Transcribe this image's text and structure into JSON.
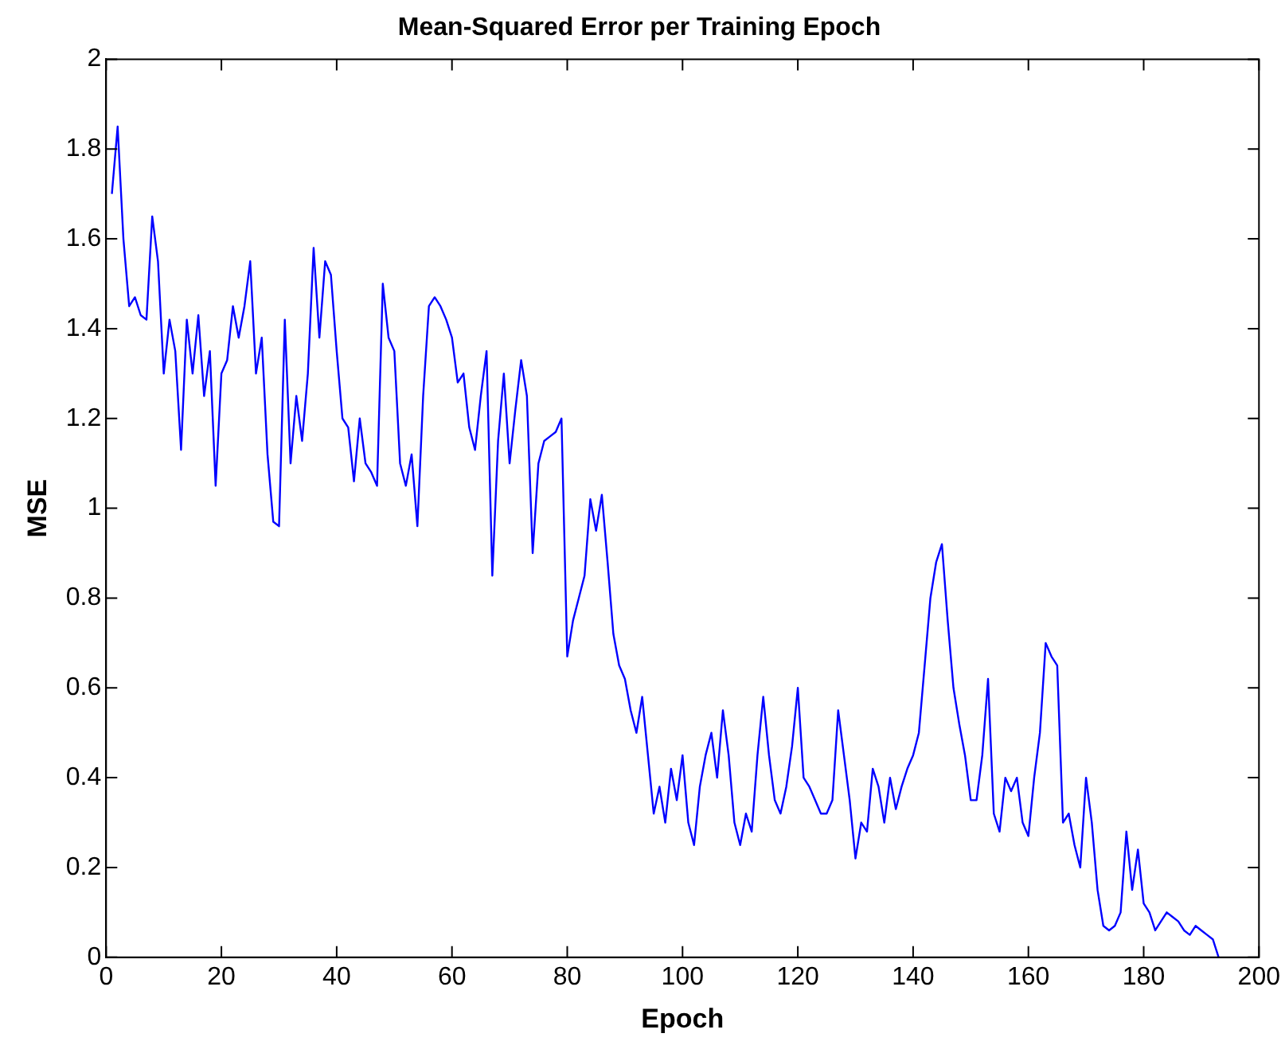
{
  "chart_data": {
    "type": "line",
    "title": "Mean-Squared Error per Training Epoch",
    "xlabel": "Epoch",
    "ylabel": "MSE",
    "xlim": [
      0,
      200
    ],
    "xticks": [
      0,
      20,
      40,
      60,
      80,
      100,
      120,
      140,
      160,
      180,
      200
    ],
    "ylim": [
      0,
      2
    ],
    "yticks": [
      0,
      0.2,
      0.4,
      0.6,
      0.8,
      1,
      1.2,
      1.4,
      1.6,
      1.8,
      2
    ],
    "grid": false,
    "legend": false,
    "marker": "none",
    "line_style": "solid",
    "series": [
      {
        "color": "#0000ff",
        "x": [
          1,
          2,
          3,
          4,
          5,
          6,
          7,
          8,
          9,
          10,
          11,
          12,
          13,
          14,
          15,
          16,
          17,
          18,
          19,
          20,
          21,
          22,
          23,
          24,
          25,
          26,
          27,
          28,
          29,
          30,
          31,
          32,
          33,
          34,
          35,
          36,
          37,
          38,
          39,
          40,
          41,
          42,
          43,
          44,
          45,
          46,
          47,
          48,
          49,
          50,
          51,
          52,
          53,
          54,
          55,
          56,
          57,
          58,
          59,
          60,
          61,
          62,
          63,
          64,
          65,
          66,
          67,
          68,
          69,
          70,
          71,
          72,
          73,
          74,
          75,
          76,
          77,
          78,
          79,
          80,
          81,
          82,
          83,
          84,
          85,
          86,
          87,
          88,
          89,
          90,
          91,
          92,
          93,
          94,
          95,
          96,
          97,
          98,
          99,
          100,
          101,
          102,
          103,
          104,
          105,
          106,
          107,
          108,
          109,
          110,
          111,
          112,
          113,
          114,
          115,
          116,
          117,
          118,
          119,
          120,
          121,
          122,
          123,
          124,
          125,
          126,
          127,
          128,
          129,
          130,
          131,
          132,
          133,
          134,
          135,
          136,
          137,
          138,
          139,
          140,
          141,
          142,
          143,
          144,
          145,
          146,
          147,
          148,
          149,
          150,
          151,
          152,
          153,
          154,
          155,
          156,
          157,
          158,
          159,
          160,
          161,
          162,
          163,
          164,
          165,
          166,
          167,
          168,
          169,
          170,
          171,
          172,
          173,
          174,
          175,
          176,
          177,
          178,
          179,
          180,
          181,
          182,
          183,
          184,
          185,
          186,
          187,
          188,
          189,
          190,
          191,
          192,
          193
        ],
        "values": [
          1.7,
          1.85,
          1.6,
          1.45,
          1.47,
          1.43,
          1.42,
          1.65,
          1.55,
          1.3,
          1.42,
          1.35,
          1.13,
          1.42,
          1.3,
          1.43,
          1.25,
          1.35,
          1.05,
          1.3,
          1.33,
          1.45,
          1.38,
          1.45,
          1.55,
          1.3,
          1.38,
          1.12,
          0.97,
          0.96,
          1.42,
          1.1,
          1.25,
          1.15,
          1.3,
          1.58,
          1.38,
          1.55,
          1.52,
          1.35,
          1.2,
          1.18,
          1.06,
          1.2,
          1.1,
          1.08,
          1.05,
          1.5,
          1.38,
          1.35,
          1.1,
          1.05,
          1.12,
          0.96,
          1.25,
          1.45,
          1.47,
          1.45,
          1.42,
          1.38,
          1.28,
          1.3,
          1.18,
          1.13,
          1.25,
          1.35,
          0.85,
          1.15,
          1.3,
          1.1,
          1.22,
          1.33,
          1.25,
          0.9,
          1.1,
          1.15,
          1.16,
          1.17,
          1.2,
          0.67,
          0.75,
          0.8,
          0.85,
          1.02,
          0.95,
          1.03,
          0.88,
          0.72,
          0.65,
          0.62,
          0.55,
          0.5,
          0.58,
          0.45,
          0.32,
          0.38,
          0.3,
          0.42,
          0.35,
          0.45,
          0.3,
          0.25,
          0.38,
          0.45,
          0.5,
          0.4,
          0.55,
          0.45,
          0.3,
          0.25,
          0.32,
          0.28,
          0.45,
          0.58,
          0.45,
          0.35,
          0.32,
          0.38,
          0.47,
          0.6,
          0.4,
          0.38,
          0.35,
          0.32,
          0.32,
          0.35,
          0.55,
          0.45,
          0.35,
          0.22,
          0.3,
          0.28,
          0.42,
          0.38,
          0.3,
          0.4,
          0.33,
          0.38,
          0.42,
          0.45,
          0.5,
          0.65,
          0.8,
          0.88,
          0.92,
          0.75,
          0.6,
          0.52,
          0.45,
          0.35,
          0.35,
          0.45,
          0.62,
          0.32,
          0.28,
          0.4,
          0.37,
          0.4,
          0.3,
          0.27,
          0.4,
          0.5,
          0.7,
          0.67,
          0.65,
          0.3,
          0.32,
          0.25,
          0.2,
          0.4,
          0.3,
          0.15,
          0.07,
          0.06,
          0.07,
          0.1,
          0.28,
          0.15,
          0.24,
          0.12,
          0.1,
          0.06,
          0.08,
          0.1,
          0.09,
          0.08,
          0.06,
          0.05,
          0.07,
          0.06,
          0.05,
          0.04,
          0
        ]
      }
    ]
  }
}
